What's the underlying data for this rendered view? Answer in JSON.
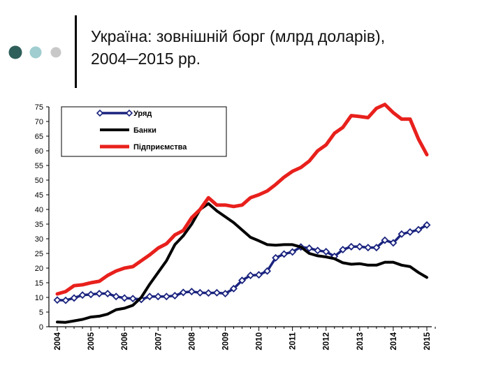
{
  "slide": {
    "title_line1": "Україна: зовнішній борг (млрд доларів),",
    "title_line2": "2004─2015 рр."
  },
  "colors": {
    "dot1": "#2f5f5a",
    "dot2": "#9fcdd0",
    "dot3": "#c8c8c8",
    "government": "#1a237e",
    "banks": "#000000",
    "enterprises": "#e8201c"
  },
  "chart_data": {
    "type": "line",
    "title": "",
    "xlabel": "",
    "ylabel": "",
    "ylim": [
      0,
      75
    ],
    "yticks": [
      0,
      5,
      10,
      15,
      20,
      25,
      30,
      35,
      40,
      45,
      50,
      55,
      60,
      65,
      70,
      75
    ],
    "xlim": [
      2004,
      2015.25
    ],
    "xticks": [
      "2004",
      "2005",
      "2006",
      "2007",
      "2008",
      "2009",
      "2010",
      "2011",
      "2012",
      "2013",
      "2014",
      "2015"
    ],
    "legend_position": "top-left",
    "series": [
      {
        "name": "Уряд",
        "color": "#1a237e",
        "marker": "diamond",
        "x": [
          2004,
          2004.25,
          2004.5,
          2004.75,
          2005,
          2005.25,
          2005.5,
          2005.75,
          2006,
          2006.25,
          2006.5,
          2006.75,
          2007,
          2007.25,
          2007.5,
          2007.75,
          2008,
          2008.25,
          2008.5,
          2008.75,
          2009,
          2009.25,
          2009.5,
          2009.75,
          2010,
          2010.25,
          2010.5,
          2010.75,
          2011,
          2011.25,
          2011.5,
          2011.75,
          2012,
          2012.25,
          2012.5,
          2012.75,
          2013,
          2013.25,
          2013.5,
          2013.75,
          2014,
          2014.25,
          2014.5,
          2014.75,
          2015
        ],
        "values": [
          9.1,
          9.0,
          9.8,
          10.8,
          11.0,
          11.3,
          11.3,
          10.3,
          9.8,
          9.6,
          9.3,
          10.3,
          10.3,
          10.3,
          10.6,
          11.7,
          12.0,
          11.6,
          11.5,
          11.6,
          11.3,
          13.0,
          15.8,
          17.5,
          17.7,
          19.0,
          23.5,
          24.8,
          25.5,
          27.2,
          26.8,
          26.0,
          25.6,
          24.0,
          26.3,
          27.3,
          27.3,
          27.0,
          27.0,
          29.5,
          28.6,
          31.6,
          32.3,
          33.1,
          34.7
        ]
      },
      {
        "name": "Банки",
        "color": "#000000",
        "marker": "none",
        "x": [
          2004,
          2004.25,
          2004.5,
          2004.75,
          2005,
          2005.25,
          2005.5,
          2005.75,
          2006,
          2006.25,
          2006.5,
          2006.75,
          2007,
          2007.25,
          2007.5,
          2007.75,
          2008,
          2008.25,
          2008.5,
          2008.75,
          2009,
          2009.25,
          2009.5,
          2009.75,
          2010,
          2010.25,
          2010.5,
          2010.75,
          2011,
          2011.25,
          2011.5,
          2011.75,
          2012,
          2012.25,
          2012.5,
          2012.75,
          2013,
          2013.25,
          2013.5,
          2013.75,
          2014,
          2014.25,
          2014.5,
          2014.75,
          2015
        ],
        "values": [
          1.6,
          1.5,
          2.0,
          2.5,
          3.3,
          3.6,
          4.3,
          5.8,
          6.3,
          7.3,
          10.0,
          14.5,
          18.5,
          22.5,
          28.0,
          31.0,
          35.0,
          40.0,
          42.0,
          39.5,
          37.5,
          35.5,
          33.0,
          30.5,
          29.3,
          28.0,
          27.8,
          28.0,
          28.0,
          27.2,
          25.0,
          24.2,
          23.8,
          23.2,
          21.8,
          21.3,
          21.5,
          21.0,
          21.0,
          22.0,
          22.0,
          21.0,
          20.5,
          18.5,
          16.8
        ]
      },
      {
        "name": "Підприємства",
        "color": "#e8201c",
        "marker": "none",
        "x": [
          2004,
          2004.25,
          2004.5,
          2004.75,
          2005,
          2005.25,
          2005.5,
          2005.75,
          2006,
          2006.25,
          2006.5,
          2006.75,
          2007,
          2007.25,
          2007.5,
          2007.75,
          2008,
          2008.25,
          2008.5,
          2008.75,
          2009,
          2009.25,
          2009.5,
          2009.75,
          2010,
          2010.25,
          2010.5,
          2010.75,
          2011,
          2011.25,
          2011.5,
          2011.75,
          2012,
          2012.25,
          2012.5,
          2012.75,
          2013,
          2013.25,
          2013.5,
          2013.75,
          2014,
          2014.25,
          2014.5,
          2014.75,
          2015
        ],
        "values": [
          11.2,
          12.0,
          14.0,
          14.3,
          15.0,
          15.5,
          17.5,
          19.0,
          20.0,
          20.5,
          22.5,
          24.5,
          26.8,
          28.3,
          31.3,
          32.8,
          37.2,
          40.0,
          44.0,
          41.5,
          41.5,
          41.0,
          41.5,
          44.0,
          45.0,
          46.3,
          48.5,
          51.0,
          53.0,
          54.3,
          56.5,
          60.0,
          62.0,
          66.0,
          68.0,
          72.0,
          71.7,
          71.3,
          74.5,
          75.8,
          73.0,
          70.8,
          70.8,
          64.0,
          58.7
        ]
      }
    ]
  }
}
